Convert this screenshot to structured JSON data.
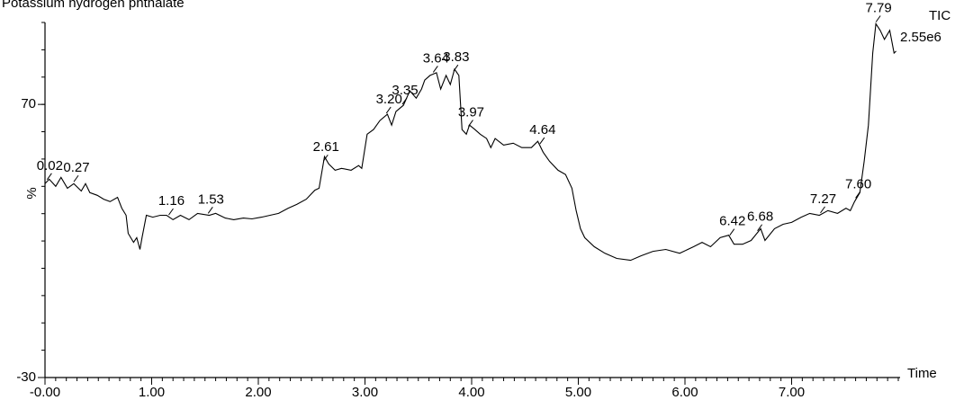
{
  "chart_data": {
    "type": "line",
    "title": "Potassium hydrogen phthalate",
    "trace_name": "TIC",
    "intensity": "2.55e6",
    "xlabel": "Time",
    "ylabel": "%",
    "color": "#000000",
    "xlim": [
      0,
      8.0
    ],
    "ylim": [
      -30,
      100
    ],
    "xticks": [
      {
        "value": 0,
        "label": "-0.00"
      },
      {
        "value": 1,
        "label": "1.00"
      },
      {
        "value": 2,
        "label": "2.00"
      },
      {
        "value": 3,
        "label": "3.00"
      },
      {
        "value": 4,
        "label": "4.00"
      },
      {
        "value": 5,
        "label": "5.00"
      },
      {
        "value": 6,
        "label": "6.00"
      },
      {
        "value": 7,
        "label": "7.00"
      }
    ],
    "yticks": [
      -30,
      70
    ],
    "x_minor_step": 0.1,
    "y_minor_step": 10,
    "x": [
      0.0,
      0.04,
      0.1,
      0.15,
      0.21,
      0.27,
      0.34,
      0.38,
      0.42,
      0.49,
      0.55,
      0.61,
      0.68,
      0.72,
      0.76,
      0.78,
      0.83,
      0.86,
      0.89,
      0.91,
      0.95,
      1.01,
      1.08,
      1.14,
      1.2,
      1.27,
      1.35,
      1.43,
      1.54,
      1.6,
      1.69,
      1.77,
      1.86,
      1.94,
      2.03,
      2.11,
      2.19,
      2.28,
      2.36,
      2.45,
      2.53,
      2.57,
      2.62,
      2.66,
      2.72,
      2.78,
      2.87,
      2.94,
      2.97,
      3.02,
      3.08,
      3.14,
      3.21,
      3.25,
      3.29,
      3.36,
      3.42,
      3.48,
      3.53,
      3.56,
      3.61,
      3.67,
      3.71,
      3.76,
      3.8,
      3.84,
      3.88,
      3.91,
      3.95,
      3.98,
      4.03,
      4.08,
      4.14,
      4.18,
      4.22,
      4.3,
      4.39,
      4.47,
      4.56,
      4.62,
      4.67,
      4.73,
      4.81,
      4.88,
      4.94,
      4.98,
      5.02,
      5.06,
      5.15,
      5.25,
      5.36,
      5.49,
      5.59,
      5.7,
      5.82,
      5.95,
      6.08,
      6.16,
      6.24,
      6.33,
      6.41,
      6.46,
      6.54,
      6.62,
      6.71,
      6.75,
      6.84,
      6.92,
      7.0,
      7.09,
      7.17,
      7.26,
      7.34,
      7.43,
      7.51,
      7.55,
      7.59,
      7.64,
      7.68,
      7.72,
      7.76,
      7.79,
      7.83,
      7.87,
      7.92,
      7.96,
      7.98
    ],
    "values": [
      41.0,
      42.6,
      40.0,
      43.3,
      39.3,
      41.0,
      38.3,
      41.0,
      37.7,
      36.7,
      35.3,
      34.4,
      36.0,
      32.0,
      29.4,
      22.8,
      19.5,
      21.2,
      16.9,
      21.2,
      29.4,
      28.7,
      29.4,
      29.4,
      27.8,
      29.4,
      27.8,
      30.1,
      29.4,
      30.1,
      28.4,
      27.8,
      28.4,
      28.1,
      28.7,
      29.4,
      30.1,
      32.0,
      33.4,
      35.3,
      38.6,
      39.3,
      50.9,
      48.2,
      45.9,
      46.6,
      45.9,
      47.6,
      46.6,
      59.1,
      60.8,
      64.1,
      66.4,
      62.4,
      67.4,
      69.7,
      75.0,
      72.3,
      75.6,
      78.9,
      80.6,
      81.6,
      75.6,
      80.6,
      77.3,
      82.9,
      80.6,
      60.8,
      59.1,
      62.4,
      60.8,
      59.1,
      57.5,
      54.2,
      57.5,
      55.1,
      55.8,
      54.2,
      54.2,
      56.5,
      52.5,
      49.2,
      45.9,
      44.3,
      39.3,
      31.1,
      24.5,
      21.2,
      17.9,
      15.5,
      13.6,
      12.9,
      14.6,
      16.2,
      16.9,
      15.5,
      17.9,
      19.5,
      17.9,
      21.2,
      22.1,
      18.8,
      18.8,
      20.2,
      24.5,
      20.2,
      24.5,
      26.1,
      26.8,
      28.7,
      30.1,
      29.4,
      31.1,
      30.1,
      32.0,
      31.1,
      34.4,
      37.7,
      49.2,
      62.4,
      88.8,
      99.5,
      97.1,
      93.8,
      97.1,
      88.8,
      89.5
    ],
    "peaks": {
      "x": [
        0.02,
        0.27,
        1.16,
        1.53,
        2.61,
        3.2,
        3.35,
        3.64,
        3.83,
        3.97,
        4.64,
        6.42,
        6.68,
        7.27,
        7.6,
        7.79
      ],
      "labels": [
        "0.02",
        "0.27",
        "1.16",
        "1.53",
        "2.61",
        "3.20",
        "3.35",
        "3.64",
        "3.83",
        "3.97",
        "4.64",
        "6.42",
        "6.68",
        "7.27",
        "7.60",
        "7.79"
      ]
    }
  }
}
